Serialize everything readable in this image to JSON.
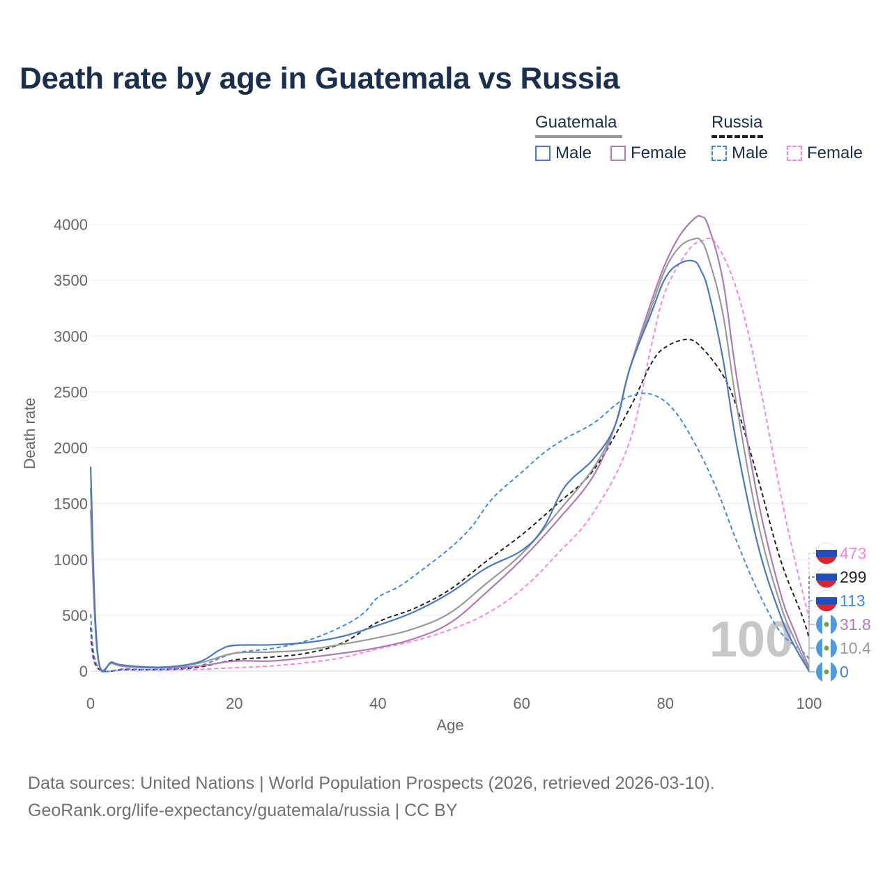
{
  "title": "Death rate by age in Guatemala vs Russia",
  "legend": {
    "groups": [
      {
        "name": "Guatemala",
        "color": "#999999",
        "dash": "solid"
      },
      {
        "name": "Russia",
        "color": "#222222",
        "dash": "dashed"
      }
    ],
    "items": [
      {
        "label": "Male",
        "color": "#4a78c2",
        "dash": "solid"
      },
      {
        "label": "Female",
        "color": "#b07ab5",
        "dash": "solid"
      },
      {
        "label": "Male",
        "color": "#3d8be8",
        "dash": "dashed"
      },
      {
        "label": "Female",
        "color": "#ff80e6",
        "dash": "dashed"
      }
    ]
  },
  "footer": {
    "line1": "Data sources: United Nations | World Population Prospects (2026, retrieved 2026-03-10).",
    "line2": "GeoRank.org/life-expectancy/guatemala/russia | CC BY"
  },
  "chart_data": {
    "type": "line",
    "title": "Death rate by age in Guatemala vs Russia",
    "xlabel": "Age",
    "ylabel": "Death rate",
    "xlim": [
      0,
      100
    ],
    "ylim": [
      0,
      4000
    ],
    "xticks": [
      "0",
      "20",
      "40",
      "60",
      "80",
      "100"
    ],
    "yticks": [
      "0",
      "500",
      "1000",
      "1500",
      "2000",
      "2500",
      "3000",
      "3500",
      "4000"
    ],
    "watermark": "100",
    "series": [
      {
        "name": "Russia Female",
        "color": "#ff80e6",
        "dash": "dashed",
        "end_label": "473",
        "flag": "russia",
        "points": [
          [
            0,
            270
          ],
          [
            1,
            20
          ],
          [
            5,
            10
          ],
          [
            10,
            10
          ],
          [
            15,
            15
          ],
          [
            20,
            30
          ],
          [
            25,
            45
          ],
          [
            30,
            75
          ],
          [
            35,
            120
          ],
          [
            40,
            200
          ],
          [
            45,
            270
          ],
          [
            50,
            370
          ],
          [
            55,
            510
          ],
          [
            60,
            730
          ],
          [
            65,
            1050
          ],
          [
            70,
            1420
          ],
          [
            75,
            2050
          ],
          [
            78,
            2900
          ],
          [
            80,
            3400
          ],
          [
            83,
            3750
          ],
          [
            85,
            3850
          ],
          [
            87,
            3830
          ],
          [
            90,
            3400
          ],
          [
            93,
            2600
          ],
          [
            96,
            1600
          ],
          [
            98,
            1000
          ],
          [
            100,
            473
          ]
        ]
      },
      {
        "name": "Russia Total",
        "color": "#222222",
        "dash": "dashed",
        "end_label": "299",
        "flag": "russia",
        "points": [
          [
            0,
            390
          ],
          [
            1,
            30
          ],
          [
            5,
            15
          ],
          [
            10,
            15
          ],
          [
            15,
            35
          ],
          [
            20,
            100
          ],
          [
            25,
            125
          ],
          [
            30,
            160
          ],
          [
            35,
            250
          ],
          [
            40,
            440
          ],
          [
            45,
            560
          ],
          [
            50,
            730
          ],
          [
            55,
            980
          ],
          [
            60,
            1220
          ],
          [
            65,
            1500
          ],
          [
            70,
            1800
          ],
          [
            75,
            2350
          ],
          [
            78,
            2750
          ],
          [
            80,
            2900
          ],
          [
            83,
            2970
          ],
          [
            85,
            2900
          ],
          [
            88,
            2650
          ],
          [
            90,
            2350
          ],
          [
            93,
            1700
          ],
          [
            96,
            1000
          ],
          [
            99,
            500
          ],
          [
            100,
            299
          ]
        ]
      },
      {
        "name": "Russia Male",
        "color": "#3d8be8",
        "dash": "dashed",
        "end_label": "113",
        "flag": "russia",
        "points": [
          [
            0,
            510
          ],
          [
            1,
            40
          ],
          [
            5,
            20
          ],
          [
            10,
            15
          ],
          [
            15,
            45
          ],
          [
            20,
            160
          ],
          [
            25,
            200
          ],
          [
            30,
            270
          ],
          [
            35,
            400
          ],
          [
            38,
            520
          ],
          [
            40,
            660
          ],
          [
            43,
            760
          ],
          [
            46,
            900
          ],
          [
            50,
            1100
          ],
          [
            53,
            1290
          ],
          [
            56,
            1550
          ],
          [
            60,
            1780
          ],
          [
            63,
            1950
          ],
          [
            66,
            2080
          ],
          [
            70,
            2220
          ],
          [
            73,
            2380
          ],
          [
            75,
            2460
          ],
          [
            78,
            2480
          ],
          [
            81,
            2350
          ],
          [
            84,
            2050
          ],
          [
            87,
            1650
          ],
          [
            90,
            1150
          ],
          [
            93,
            700
          ],
          [
            96,
            350
          ],
          [
            99,
            180
          ],
          [
            100,
            113
          ]
        ]
      },
      {
        "name": "Guatemala Female",
        "color": "#b07ab5",
        "dash": "solid",
        "end_label": "31.8",
        "flag": "guatemala",
        "points": [
          [
            0,
            1440
          ],
          [
            1,
            130
          ],
          [
            3,
            70
          ],
          [
            5,
            40
          ],
          [
            10,
            30
          ],
          [
            15,
            45
          ],
          [
            20,
            90
          ],
          [
            25,
            90
          ],
          [
            30,
            120
          ],
          [
            35,
            160
          ],
          [
            40,
            210
          ],
          [
            45,
            290
          ],
          [
            50,
            430
          ],
          [
            55,
            700
          ],
          [
            60,
            1000
          ],
          [
            65,
            1350
          ],
          [
            70,
            1750
          ],
          [
            73,
            2200
          ],
          [
            75,
            2700
          ],
          [
            78,
            3300
          ],
          [
            80,
            3650
          ],
          [
            82,
            3900
          ],
          [
            84,
            4050
          ],
          [
            85,
            4070
          ],
          [
            86,
            3980
          ],
          [
            88,
            3500
          ],
          [
            90,
            2600
          ],
          [
            93,
            1500
          ],
          [
            96,
            700
          ],
          [
            98,
            350
          ],
          [
            100,
            31.8
          ]
        ]
      },
      {
        "name": "Guatemala Total",
        "color": "#999999",
        "dash": "solid",
        "end_label": "10.4",
        "flag": "guatemala",
        "points": [
          [
            0,
            1640
          ],
          [
            1,
            140
          ],
          [
            3,
            75
          ],
          [
            5,
            45
          ],
          [
            10,
            32
          ],
          [
            15,
            70
          ],
          [
            20,
            160
          ],
          [
            25,
            170
          ],
          [
            30,
            190
          ],
          [
            35,
            240
          ],
          [
            40,
            300
          ],
          [
            45,
            380
          ],
          [
            50,
            520
          ],
          [
            55,
            780
          ],
          [
            60,
            1050
          ],
          [
            65,
            1420
          ],
          [
            70,
            1820
          ],
          [
            73,
            2200
          ],
          [
            75,
            2700
          ],
          [
            78,
            3250
          ],
          [
            80,
            3600
          ],
          [
            82,
            3800
          ],
          [
            84,
            3870
          ],
          [
            85,
            3850
          ],
          [
            86,
            3700
          ],
          [
            88,
            3200
          ],
          [
            90,
            2350
          ],
          [
            93,
            1300
          ],
          [
            96,
            600
          ],
          [
            98,
            280
          ],
          [
            100,
            10.4
          ]
        ]
      },
      {
        "name": "Guatemala Male",
        "color": "#4a78c2",
        "dash": "solid",
        "end_label": "0",
        "flag": "guatemala",
        "points": [
          [
            0,
            1830
          ],
          [
            1,
            150
          ],
          [
            3,
            80
          ],
          [
            5,
            50
          ],
          [
            10,
            35
          ],
          [
            15,
            80
          ],
          [
            18,
            190
          ],
          [
            20,
            230
          ],
          [
            25,
            235
          ],
          [
            30,
            255
          ],
          [
            35,
            310
          ],
          [
            40,
            410
          ],
          [
            45,
            530
          ],
          [
            50,
            700
          ],
          [
            55,
            920
          ],
          [
            60,
            1080
          ],
          [
            63,
            1280
          ],
          [
            66,
            1650
          ],
          [
            70,
            1900
          ],
          [
            73,
            2200
          ],
          [
            75,
            2700
          ],
          [
            78,
            3200
          ],
          [
            80,
            3520
          ],
          [
            82,
            3650
          ],
          [
            84,
            3670
          ],
          [
            85,
            3580
          ],
          [
            86,
            3400
          ],
          [
            88,
            2800
          ],
          [
            90,
            2000
          ],
          [
            93,
            1100
          ],
          [
            96,
            500
          ],
          [
            98,
            220
          ],
          [
            100,
            0
          ]
        ]
      }
    ]
  }
}
